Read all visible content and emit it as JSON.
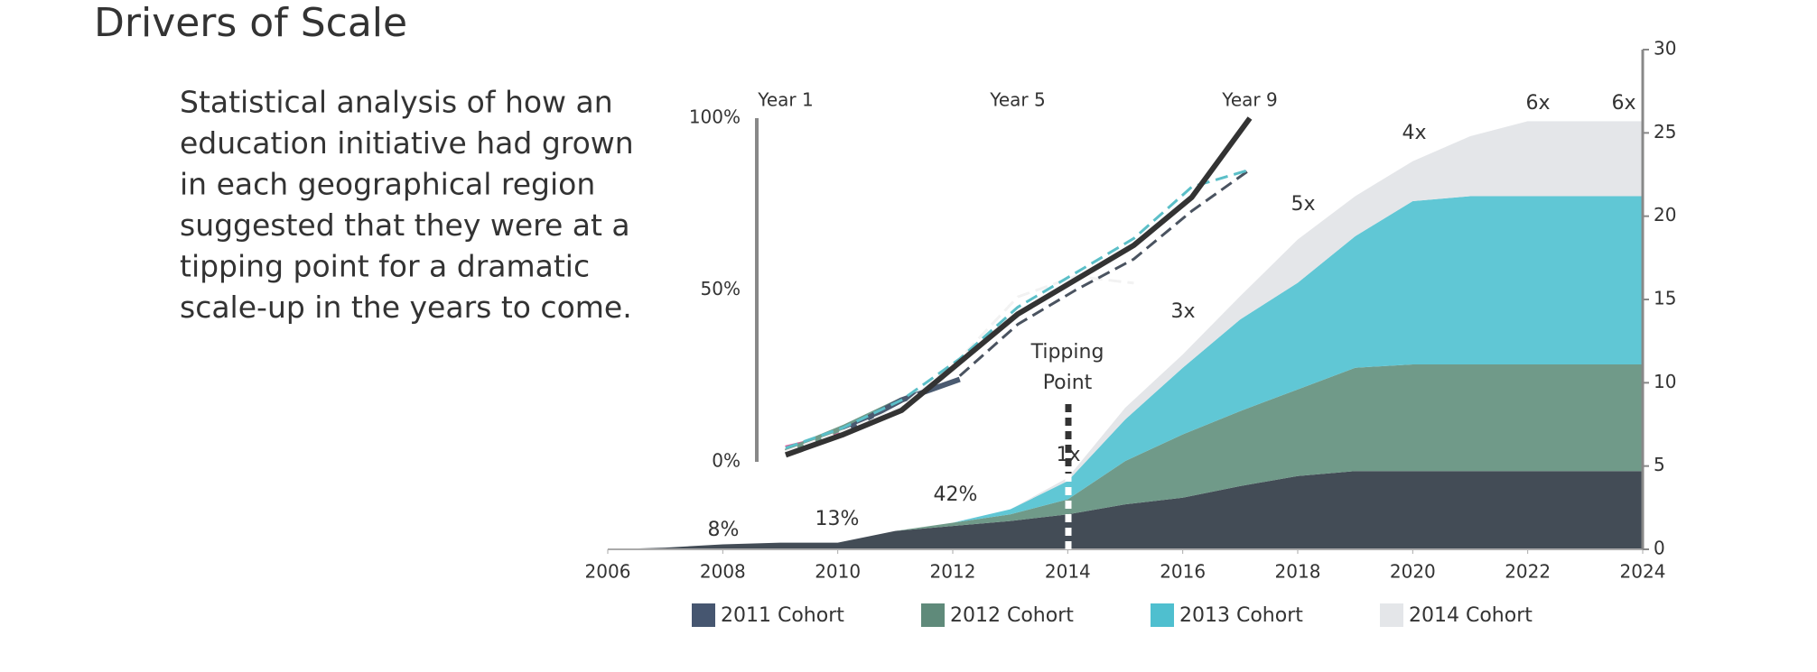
{
  "header": {
    "title": "Drivers of Scale",
    "text": [
      "Statistical  analysis of how an",
      "education initiative had grown",
      "in each geographical region",
      "suggested that they were at a",
      "tipping point for a dramatic",
      "scale-up in the years to come."
    ]
  },
  "chart_data": [
    {
      "type": "stacked_area",
      "x": [
        2006,
        2007,
        2008,
        2009,
        2010,
        2011,
        2012,
        2013,
        2014,
        2015,
        2016,
        2017,
        2018,
        2019,
        2020,
        2021,
        2022,
        2023,
        2024
      ],
      "xlim": [
        2006,
        2024
      ],
      "xticks": [
        2006,
        2008,
        2010,
        2012,
        2014,
        2016,
        2018,
        2020,
        2022,
        2024
      ],
      "ylim": [
        0,
        30
      ],
      "yticks": [
        0,
        5,
        10,
        15,
        20,
        25,
        30
      ],
      "y_axis_side": "right",
      "series": [
        {
          "name": "2011 Cohort",
          "color": "#434c56",
          "legend_color": "#465670",
          "values": [
            0,
            0.1,
            0.3,
            0.4,
            0.4,
            1.1,
            1.4,
            1.7,
            2.1,
            2.7,
            3.1,
            3.8,
            4.4,
            4.7,
            4.7,
            4.7,
            4.7,
            4.7,
            4.7
          ]
        },
        {
          "name": "2012 Cohort",
          "color": "#709a89",
          "legend_color": "#5f8a7a",
          "values": [
            0,
            0,
            0,
            0,
            0,
            0,
            0.2,
            0.4,
            0.9,
            2.6,
            3.8,
            4.5,
            5.2,
            6.2,
            6.4,
            6.4,
            6.4,
            6.4,
            6.4
          ]
        },
        {
          "name": "2013 Cohort",
          "color": "#60c7d5",
          "legend_color": "#4fbfcf",
          "values": [
            0,
            0,
            0,
            0,
            0,
            0,
            0,
            0.3,
            1.1,
            2.5,
            4.0,
            5.5,
            6.4,
            7.9,
            9.8,
            10.1,
            10.1,
            10.1,
            10.1
          ]
        },
        {
          "name": "2014 Cohort",
          "color": "#e4e6e9",
          "legend_color": "#e4e6e9",
          "values": [
            0,
            0,
            0,
            0,
            0,
            0,
            0,
            0,
            0.2,
            0.7,
            0.8,
            1.4,
            2.6,
            2.4,
            2.4,
            3.6,
            4.5,
            4.5,
            4.5
          ]
        }
      ],
      "annotations": [
        "8%",
        "13%",
        "42%",
        "1x",
        "3x",
        "5x",
        "4x",
        "6x",
        "6x",
        "Tipping",
        "Point"
      ]
    },
    {
      "type": "line",
      "x": [
        1,
        2,
        3,
        4,
        5,
        6,
        7,
        8,
        9
      ],
      "xlim": [
        1,
        9
      ],
      "xticks": [
        {
          "value": 1,
          "label": "Year 1"
        },
        {
          "value": 5,
          "label": "Year 5"
        },
        {
          "value": 9,
          "label": "Year 9"
        }
      ],
      "ylim": [
        0,
        100
      ],
      "yticks": [
        {
          "value": 0,
          "label": "0%"
        },
        {
          "value": 50,
          "label": "50%"
        },
        {
          "value": 100,
          "label": "100%"
        }
      ],
      "series": [
        {
          "color": "#d6609a",
          "dashed": false,
          "values": [
            4,
            8,
            null,
            null,
            null,
            null,
            null,
            null,
            null
          ]
        },
        {
          "color": "#709a89",
          "dashed": false,
          "values": [
            3,
            10,
            18,
            null,
            null,
            null,
            null,
            null,
            null
          ]
        },
        {
          "color": "#4a5a70",
          "dashed": false,
          "values": [
            null,
            9,
            18,
            24,
            null,
            null,
            null,
            null,
            null
          ]
        },
        {
          "color": "#f2f2f2",
          "dashed": true,
          "values": [
            3,
            9,
            16,
            30,
            48,
            54,
            52,
            null,
            null
          ]
        },
        {
          "color": "#4a5360",
          "dashed": true,
          "values": [
            null,
            null,
            null,
            25,
            40,
            50,
            59,
            73,
            85
          ]
        },
        {
          "color": "#5bbfc8",
          "dashed": true,
          "values": [
            4,
            10,
            18,
            30,
            45,
            55,
            65,
            80,
            85
          ]
        },
        {
          "color": "#333333",
          "dashed": false,
          "values": [
            2,
            8,
            15,
            29,
            43,
            53,
            63,
            77,
            100
          ]
        }
      ]
    }
  ]
}
